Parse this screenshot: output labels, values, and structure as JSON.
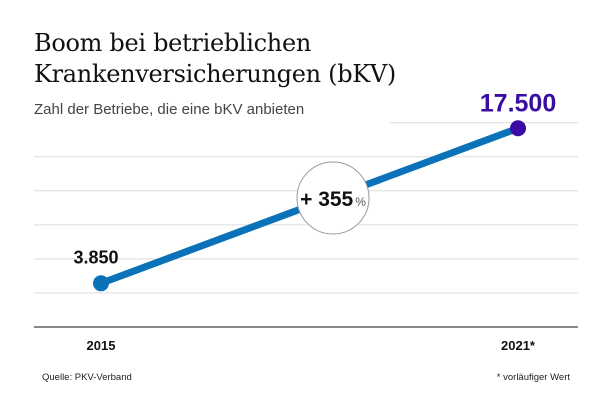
{
  "title_line1": "Boom bei betrieblichen",
  "title_line2": "Krankenversicherungen (bKV)",
  "subtitle": "Zahl der Betriebe, die eine bKV anbieten",
  "source": "Quelle: PKV-Verband",
  "footnote": "* vorläufiger Wert",
  "chart_data": {
    "type": "line",
    "title": "Boom bei betrieblichen Krankenversicherungen (bKV)",
    "subtitle": "Zahl der Betriebe, die eine bKV anbieten",
    "categories": [
      "2015",
      "2021*"
    ],
    "values": [
      3850,
      17500
    ],
    "value_labels": [
      "3.850",
      "17.500"
    ],
    "annotation": {
      "value": "+ 355",
      "unit": "%"
    },
    "ylim": [
      0,
      18000
    ],
    "grid": true,
    "colors": {
      "line": "#0a72b8",
      "start_point": "#0a72b8",
      "end_point": "#3a0ca3",
      "end_label": "#3a0ca3"
    }
  }
}
